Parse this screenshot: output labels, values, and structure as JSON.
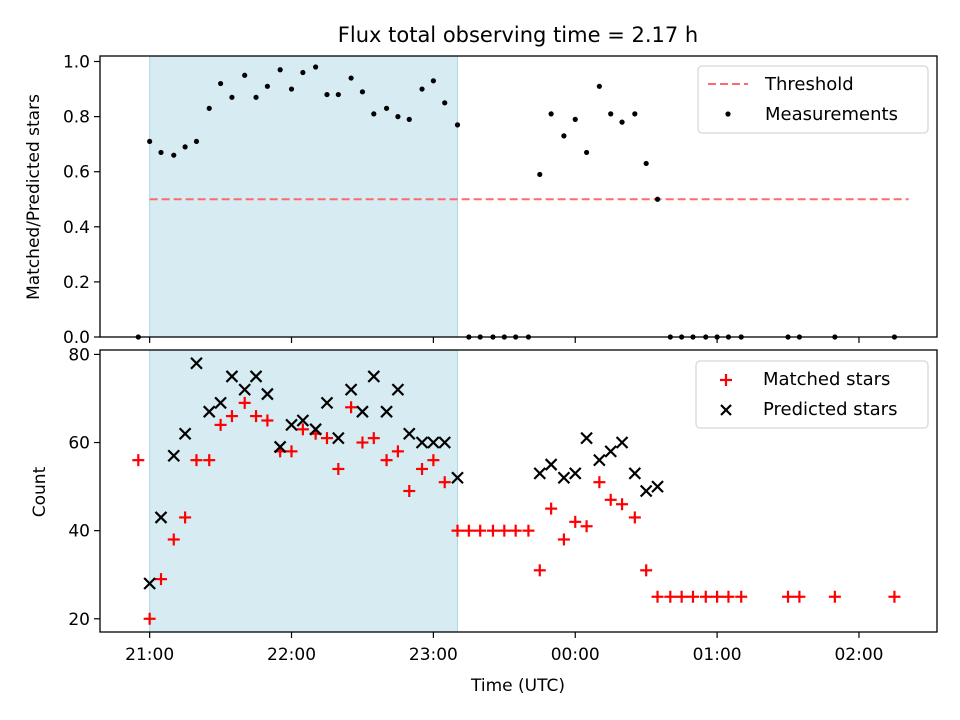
{
  "chart_data": [
    {
      "panel": "ratio",
      "type": "scatter",
      "title": "Flux total observing time = 2.17 h",
      "xlabel": "",
      "ylabel": "Matched/Predicted stars",
      "ylim": [
        0,
        1.02
      ],
      "yticks": [
        "0.0",
        "0.2",
        "0.4",
        "0.6",
        "0.8",
        "1.0"
      ],
      "ytick_values": [
        0,
        0.2,
        0.4,
        0.6,
        0.8,
        1.0
      ],
      "xaxis_unit": "hours after 21:00 UTC",
      "xlim": [
        -0.35,
        5.55
      ],
      "shaded_span": [
        0,
        2.17
      ],
      "shaded_color": "#add8e6",
      "threshold": {
        "name": "Threshold",
        "y": 0.5,
        "x_range": [
          0,
          5.35
        ],
        "color": "#ff6b6b",
        "style": "dashed"
      },
      "series": [
        {
          "name": "Measurements",
          "color": "#000000",
          "points": [
            [
              -0.08,
              0
            ],
            [
              0,
              0.71
            ],
            [
              0.08,
              0.67
            ],
            [
              0.17,
              0.66
            ],
            [
              0.25,
              0.69
            ],
            [
              0.33,
              0.71
            ],
            [
              0.42,
              0.83
            ],
            [
              0.5,
              0.92
            ],
            [
              0.58,
              0.87
            ],
            [
              0.67,
              0.95
            ],
            [
              0.75,
              0.87
            ],
            [
              0.83,
              0.91
            ],
            [
              0.92,
              0.97
            ],
            [
              1,
              0.9
            ],
            [
              1.08,
              0.96
            ],
            [
              1.17,
              0.98
            ],
            [
              1.25,
              0.88
            ],
            [
              1.33,
              0.88
            ],
            [
              1.42,
              0.94
            ],
            [
              1.5,
              0.89
            ],
            [
              1.58,
              0.81
            ],
            [
              1.67,
              0.83
            ],
            [
              1.75,
              0.8
            ],
            [
              1.83,
              0.79
            ],
            [
              1.92,
              0.9
            ],
            [
              2,
              0.93
            ],
            [
              2.08,
              0.85
            ],
            [
              2.17,
              0.77
            ],
            [
              2.25,
              0
            ],
            [
              2.33,
              0
            ],
            [
              2.42,
              0
            ],
            [
              2.5,
              0
            ],
            [
              2.58,
              0
            ],
            [
              2.67,
              0
            ],
            [
              2.75,
              0.59
            ],
            [
              2.83,
              0.81
            ],
            [
              2.92,
              0.73
            ],
            [
              3,
              0.79
            ],
            [
              3.08,
              0.67
            ],
            [
              3.17,
              0.91
            ],
            [
              3.25,
              0.81
            ],
            [
              3.33,
              0.78
            ],
            [
              3.42,
              0.81
            ],
            [
              3.5,
              0.63
            ],
            [
              3.58,
              0.5
            ],
            [
              3.67,
              0
            ],
            [
              3.75,
              0
            ],
            [
              3.83,
              0
            ],
            [
              3.92,
              0
            ],
            [
              4,
              0
            ],
            [
              4.08,
              0
            ],
            [
              4.17,
              0
            ],
            [
              4.5,
              0
            ],
            [
              4.58,
              0
            ],
            [
              4.83,
              0
            ],
            [
              5.25,
              0
            ]
          ]
        }
      ],
      "legend": {
        "placement": "top-right",
        "entries": [
          "Threshold",
          "Measurements"
        ]
      }
    },
    {
      "panel": "counts",
      "type": "scatter",
      "title": "",
      "xlabel": "Time (UTC)",
      "ylabel": "Count",
      "ylim": [
        17,
        81
      ],
      "yticks": [
        "20",
        "40",
        "60",
        "80"
      ],
      "ytick_values": [
        20,
        40,
        60,
        80
      ],
      "xaxis_unit": "hours after 21:00 UTC",
      "xlim": [
        -0.35,
        5.55
      ],
      "xticks": [
        "21:00",
        "22:00",
        "23:00",
        "00:00",
        "01:00",
        "02:00"
      ],
      "xtick_values": [
        0,
        1,
        2,
        3,
        4,
        5
      ],
      "shaded_span": [
        0,
        2.17
      ],
      "shaded_color": "#add8e6",
      "series": [
        {
          "name": "Matched stars",
          "color": "#ff0000",
          "marker": "plus",
          "points": [
            [
              -0.08,
              56
            ],
            [
              0,
              20
            ],
            [
              0.08,
              29
            ],
            [
              0.17,
              38
            ],
            [
              0.25,
              43
            ],
            [
              0.33,
              56
            ],
            [
              0.42,
              56
            ],
            [
              0.5,
              64
            ],
            [
              0.58,
              66
            ],
            [
              0.67,
              69
            ],
            [
              0.75,
              66
            ],
            [
              0.83,
              65
            ],
            [
              0.92,
              58
            ],
            [
              1,
              58
            ],
            [
              1.08,
              63
            ],
            [
              1.17,
              62
            ],
            [
              1.25,
              61
            ],
            [
              1.33,
              54
            ],
            [
              1.42,
              68
            ],
            [
              1.5,
              60
            ],
            [
              1.58,
              61
            ],
            [
              1.67,
              56
            ],
            [
              1.75,
              58
            ],
            [
              1.83,
              49
            ],
            [
              1.92,
              54
            ],
            [
              2,
              56
            ],
            [
              2.08,
              51
            ],
            [
              2.17,
              40
            ],
            [
              2.25,
              40
            ],
            [
              2.33,
              40
            ],
            [
              2.42,
              40
            ],
            [
              2.5,
              40
            ],
            [
              2.58,
              40
            ],
            [
              2.67,
              40
            ],
            [
              2.75,
              31
            ],
            [
              2.83,
              45
            ],
            [
              2.92,
              38
            ],
            [
              3,
              42
            ],
            [
              3.08,
              41
            ],
            [
              3.17,
              51
            ],
            [
              3.25,
              47
            ],
            [
              3.33,
              46
            ],
            [
              3.42,
              43
            ],
            [
              3.5,
              31
            ],
            [
              3.58,
              25
            ],
            [
              3.67,
              25
            ],
            [
              3.75,
              25
            ],
            [
              3.83,
              25
            ],
            [
              3.92,
              25
            ],
            [
              4,
              25
            ],
            [
              4.08,
              25
            ],
            [
              4.17,
              25
            ],
            [
              4.5,
              25
            ],
            [
              4.58,
              25
            ],
            [
              4.83,
              25
            ],
            [
              5.25,
              25
            ]
          ]
        },
        {
          "name": "Predicted stars",
          "color": "#000000",
          "marker": "x",
          "points": [
            [
              0,
              28
            ],
            [
              0.08,
              43
            ],
            [
              0.17,
              57
            ],
            [
              0.25,
              62
            ],
            [
              0.33,
              78
            ],
            [
              0.42,
              67
            ],
            [
              0.5,
              69
            ],
            [
              0.58,
              75
            ],
            [
              0.67,
              72
            ],
            [
              0.75,
              75
            ],
            [
              0.83,
              71
            ],
            [
              0.92,
              59
            ],
            [
              1,
              64
            ],
            [
              1.08,
              65
            ],
            [
              1.17,
              63
            ],
            [
              1.25,
              69
            ],
            [
              1.33,
              61
            ],
            [
              1.42,
              72
            ],
            [
              1.5,
              67
            ],
            [
              1.58,
              75
            ],
            [
              1.67,
              67
            ],
            [
              1.75,
              72
            ],
            [
              1.83,
              62
            ],
            [
              1.92,
              60
            ],
            [
              2,
              60
            ],
            [
              2.08,
              60
            ],
            [
              2.17,
              52
            ],
            [
              2.75,
              53
            ],
            [
              2.83,
              55
            ],
            [
              2.92,
              52
            ],
            [
              3,
              53
            ],
            [
              3.08,
              61
            ],
            [
              3.17,
              56
            ],
            [
              3.25,
              58
            ],
            [
              3.33,
              60
            ],
            [
              3.42,
              53
            ],
            [
              3.5,
              49
            ],
            [
              3.58,
              50
            ]
          ]
        }
      ],
      "legend": {
        "placement": "top-right",
        "entries": [
          "Matched stars",
          "Predicted stars"
        ]
      }
    }
  ]
}
